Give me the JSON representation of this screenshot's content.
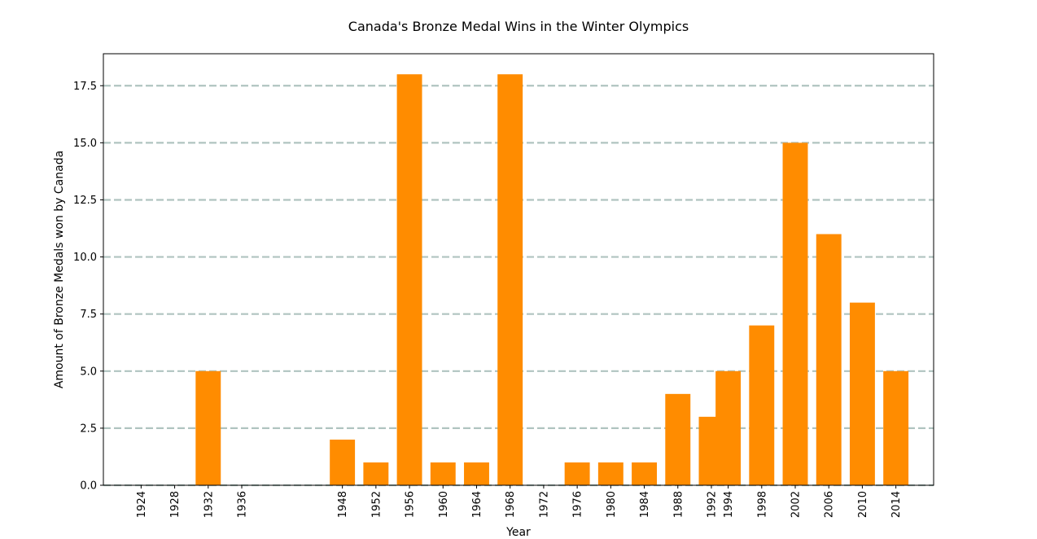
{
  "chart_data": {
    "type": "bar",
    "title": "Canada's Bronze Medal Wins in the Winter Olympics",
    "xlabel": "Year",
    "ylabel": "Amount of Bronze Medals won by Canada",
    "x_axis": "linear-years",
    "xlim": [
      1919.5,
      2018.5
    ],
    "ylim": [
      0,
      18.9
    ],
    "yticks": [
      0.0,
      2.5,
      5.0,
      7.5,
      10.0,
      12.5,
      15.0,
      17.5
    ],
    "ytick_labels": [
      "0.0",
      "2.5",
      "5.0",
      "7.5",
      "10.0",
      "12.5",
      "15.0",
      "17.5"
    ],
    "bar_width_years": 3,
    "grid": "horizontal dashed",
    "categories": [
      "1924",
      "1928",
      "1932",
      "1936",
      "1948",
      "1952",
      "1956",
      "1960",
      "1964",
      "1968",
      "1972",
      "1976",
      "1980",
      "1984",
      "1988",
      "1992",
      "1994",
      "1998",
      "2002",
      "2006",
      "2010",
      "2014"
    ],
    "x": [
      1924,
      1928,
      1932,
      1936,
      1948,
      1952,
      1956,
      1960,
      1964,
      1968,
      1972,
      1976,
      1980,
      1984,
      1988,
      1992,
      1994,
      1998,
      2002,
      2006,
      2010,
      2014
    ],
    "values": [
      0,
      0,
      5,
      0,
      2,
      1,
      18,
      1,
      1,
      18,
      0,
      1,
      1,
      1,
      4,
      3,
      5,
      7,
      15,
      11,
      8,
      5
    ],
    "colors": {
      "bar": "#ff8c00",
      "grid": "#b0c4c0",
      "axis": "#000000"
    }
  }
}
